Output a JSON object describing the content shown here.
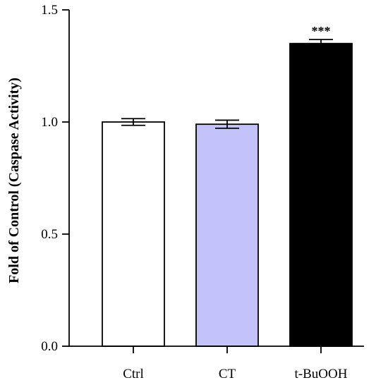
{
  "chart_data": {
    "type": "bar",
    "title": "",
    "xlabel": "",
    "ylabel": "Fold of Control (Caspase Activity)",
    "ylim": [
      0,
      1.5
    ],
    "yticks": [
      "0.0",
      "0.5",
      "1.0",
      "1.5"
    ],
    "grid": false,
    "categories": [
      "Ctrl",
      "CT",
      "t-BuOOH"
    ],
    "values": [
      1.0,
      0.99,
      1.35
    ],
    "errors": [
      0.015,
      0.018,
      0.018
    ],
    "annotations": [
      "",
      "",
      "***"
    ],
    "bar_colors": [
      "#ffffff",
      "#c3c3fa",
      "#000000"
    ],
    "edge_color": "#000000"
  }
}
